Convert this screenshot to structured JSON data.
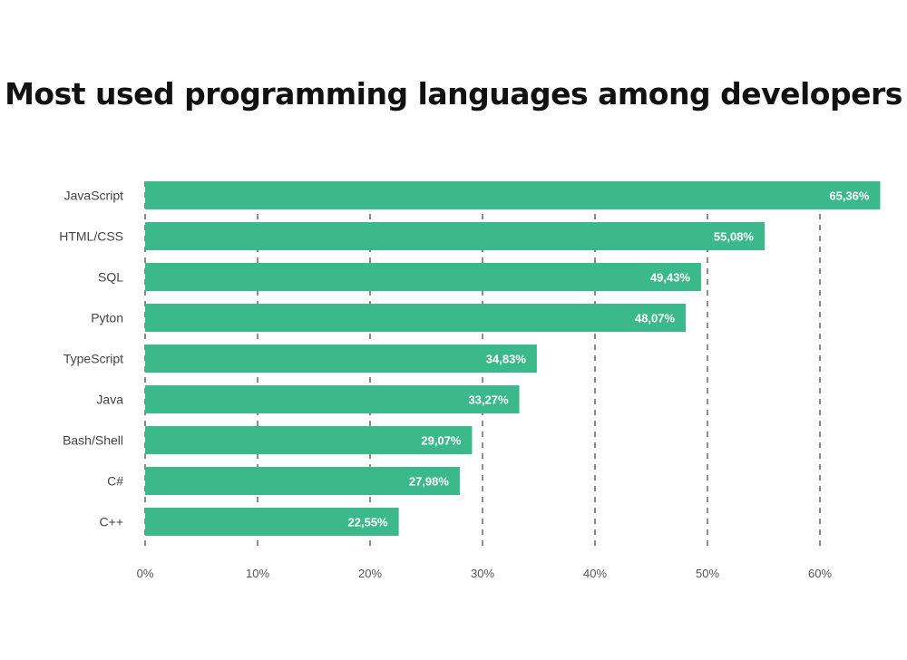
{
  "chart_data": {
    "type": "bar",
    "orientation": "horizontal",
    "title": "Most used programming languages among developers",
    "categories": [
      "JavaScript",
      "HTML/CSS",
      "SQL",
      "Pyton",
      "TypeScript",
      "Java",
      "Bash/Shell",
      "C#",
      "C++"
    ],
    "values": [
      65.36,
      55.08,
      49.43,
      48.07,
      34.83,
      33.27,
      29.07,
      27.98,
      22.55
    ],
    "data_labels": [
      "65,36%",
      "55,08%",
      "49,43%",
      "48,07%",
      "34,83%",
      "33,27%",
      "29,07%",
      "27,98%",
      "22,55%"
    ],
    "x_ticks": [
      "0%",
      "10%",
      "20%",
      "30%",
      "40%",
      "50%",
      "60%"
    ],
    "x_tick_values": [
      0,
      10,
      20,
      30,
      40,
      50,
      60
    ],
    "xlim": [
      0,
      65
    ],
    "grid": "vertical dashed",
    "bar_color": "#3cb98a",
    "xlabel": "",
    "ylabel": ""
  }
}
